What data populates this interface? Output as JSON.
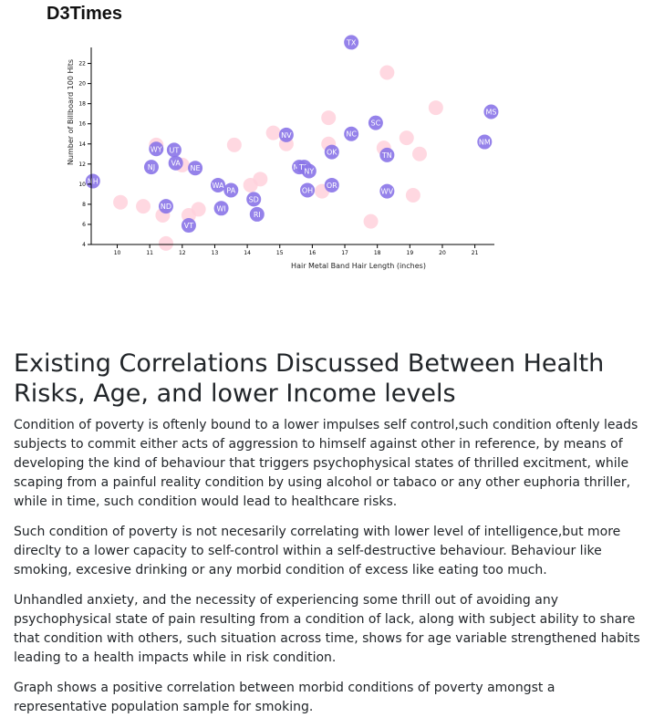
{
  "header": {
    "brand": "D3Times"
  },
  "chart_data": {
    "type": "scatter",
    "xlabel": "Hair Metal Band Hair Length (inches)",
    "ylabel": "Number of Billboard 100 Hits",
    "xlim": [
      9.2,
      21.6
    ],
    "ylim": [
      4,
      24.5
    ],
    "xticks": [
      10,
      11,
      12,
      13,
      14,
      15,
      16,
      17,
      18,
      19,
      20,
      21
    ],
    "yticks": [
      4,
      6,
      8,
      10,
      12,
      14,
      16,
      18,
      20,
      22
    ],
    "grid": false,
    "colors": {
      "state_circle": "#8a74e8",
      "state_label": "#ffffff",
      "background_circle": "#ffd1dc"
    },
    "labeled_points": [
      {
        "label": "TX",
        "x": 17.2,
        "y": 24.1
      },
      {
        "label": "MS",
        "x": 21.5,
        "y": 17.2
      },
      {
        "label": "NM",
        "x": 21.3,
        "y": 14.2
      },
      {
        "label": "SC",
        "x": 17.95,
        "y": 16.1
      },
      {
        "label": "NV",
        "x": 15.2,
        "y": 14.9
      },
      {
        "label": "NC",
        "x": 17.2,
        "y": 15.0
      },
      {
        "label": "OK",
        "x": 16.6,
        "y": 13.2
      },
      {
        "label": "TN",
        "x": 18.3,
        "y": 12.9
      },
      {
        "label": "WY",
        "x": 11.2,
        "y": 13.5
      },
      {
        "label": "UT",
        "x": 11.75,
        "y": 13.4
      },
      {
        "label": "VA",
        "x": 11.8,
        "y": 12.1
      },
      {
        "label": "NJ",
        "x": 11.05,
        "y": 11.7
      },
      {
        "label": "NE",
        "x": 12.4,
        "y": 11.6
      },
      {
        "label": "MO",
        "x": 15.6,
        "y": 11.7
      },
      {
        "label": "TD",
        "x": 15.75,
        "y": 11.7
      },
      {
        "label": "NY",
        "x": 15.9,
        "y": 11.3
      },
      {
        "label": "NH",
        "x": 9.25,
        "y": 10.3
      },
      {
        "label": "WA",
        "x": 13.1,
        "y": 9.9
      },
      {
        "label": "PA",
        "x": 13.5,
        "y": 9.4
      },
      {
        "label": "OH",
        "x": 15.85,
        "y": 9.4
      },
      {
        "label": "OR",
        "x": 16.6,
        "y": 9.9
      },
      {
        "label": "WV",
        "x": 18.3,
        "y": 9.3
      },
      {
        "label": "SD",
        "x": 14.2,
        "y": 8.5
      },
      {
        "label": "ND",
        "x": 11.5,
        "y": 7.8
      },
      {
        "label": "WI",
        "x": 13.2,
        "y": 7.6
      },
      {
        "label": "RI",
        "x": 14.3,
        "y": 7.0
      },
      {
        "label": "VT",
        "x": 12.2,
        "y": 5.9
      }
    ],
    "background_points": [
      {
        "x": 10.1,
        "y": 8.2
      },
      {
        "x": 10.8,
        "y": 7.8
      },
      {
        "x": 11.4,
        "y": 6.9
      },
      {
        "x": 11.5,
        "y": 4.1
      },
      {
        "x": 12.0,
        "y": 11.9
      },
      {
        "x": 12.2,
        "y": 6.9
      },
      {
        "x": 12.5,
        "y": 7.5
      },
      {
        "x": 13.6,
        "y": 13.9
      },
      {
        "x": 14.1,
        "y": 9.9
      },
      {
        "x": 14.4,
        "y": 10.5
      },
      {
        "x": 14.8,
        "y": 15.1
      },
      {
        "x": 15.2,
        "y": 14.0
      },
      {
        "x": 16.3,
        "y": 9.3
      },
      {
        "x": 16.5,
        "y": 16.6
      },
      {
        "x": 16.5,
        "y": 14.0
      },
      {
        "x": 17.8,
        "y": 6.3
      },
      {
        "x": 18.2,
        "y": 13.6
      },
      {
        "x": 18.3,
        "y": 21.1
      },
      {
        "x": 18.9,
        "y": 14.6
      },
      {
        "x": 19.1,
        "y": 8.9
      },
      {
        "x": 19.3,
        "y": 13.0
      },
      {
        "x": 19.8,
        "y": 17.6
      },
      {
        "x": 11.2,
        "y": 13.9
      }
    ]
  },
  "article": {
    "heading": "Existing Correlations Discussed Between Health Risks, Age, and lower Income levels",
    "paragraphs": [
      "Condition of poverty is oftenly bound to a lower impulses self control,such condition oftenly leads subjects to commit either acts of aggression to himself against other in reference, by means of developing the kind of behaviour that triggers psychophysical states of thrilled excitment, while scaping from a painful reality condition by using alcohol or tabaco or any other euphoria thriller, while in time, such condition would lead to healthcare risks.",
      "Such condition of poverty is not necesarily correlating with lower level of intelligence,but more direclty to a lower capacity to self-control within a self-destructive behaviour. Behaviour like smoking, excesive drinking or any morbid condition of excess like eating too much.",
      "Unhandled anxiety, and the necessity of experiencing some thrill out of avoiding any psychophysical state of pain resulting from a condition of lack, along with subject ability to share that condition with others, such situation across time, shows for age variable strengthened habits leading to a health impacts while in risk condition.",
      "Graph shows a positive correlation between morbid conditions of poverty amongst a representative population sample for smoking."
    ]
  }
}
